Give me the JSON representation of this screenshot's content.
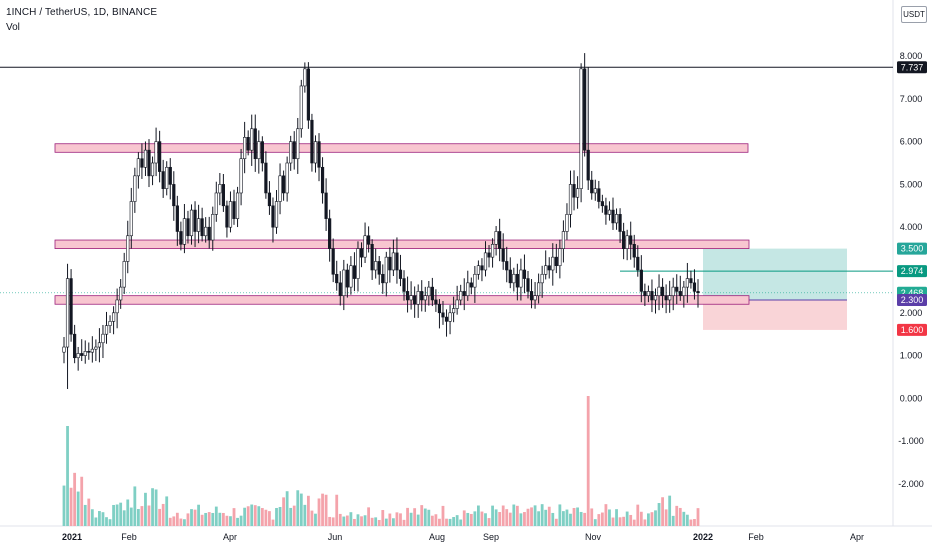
{
  "header": {
    "symbol_title": "1INCH / TetherUS, 1D, BINANCE",
    "volume_label": "Vol",
    "currency_button": "USDT"
  },
  "price_axis": {
    "tick_labels": [
      "8.000",
      "7.000",
      "6.000",
      "5.000",
      "4.000",
      "3.000",
      "2.000",
      "1.000",
      "0.000",
      "-1.000",
      "-2.000"
    ],
    "tick_values": [
      8,
      7,
      6,
      5,
      4,
      3,
      2,
      1,
      0,
      -1,
      -2
    ]
  },
  "time_axis": {
    "labels": [
      "2021",
      "Feb",
      "Apr",
      "Jun",
      "Aug",
      "Sep",
      "Nov",
      "2022",
      "Feb",
      "Apr"
    ],
    "bold": [
      true,
      false,
      false,
      false,
      false,
      false,
      false,
      true,
      false,
      false
    ]
  },
  "price_tags": [
    {
      "label": "7.737",
      "value": 7.737,
      "color": "#131722",
      "text_color": "#ffffff"
    },
    {
      "label": "3.500",
      "value": 3.5,
      "color": "#26a69a",
      "text_color": "#ffffff"
    },
    {
      "label": "2.974",
      "value": 2.974,
      "color": "#089981",
      "text_color": "#ffffff"
    },
    {
      "label": "2.468",
      "value": 2.468,
      "color": "#22ab94",
      "text_color": "#ffffff"
    },
    {
      "label": "2.300",
      "value": 2.3,
      "color": "#5b3ea8",
      "text_color": "#ffffff"
    },
    {
      "label": "1.600",
      "value": 1.6,
      "color": "#f23645",
      "text_color": "#ffffff"
    }
  ],
  "support_resistance_zones": [
    {
      "name": "zone-top",
      "low": 5.75,
      "high": 5.95
    },
    {
      "name": "zone-mid",
      "low": 3.5,
      "high": 3.7
    },
    {
      "name": "zone-low",
      "low": 2.2,
      "high": 2.4
    }
  ],
  "horizontal_lines": [
    {
      "name": "ath-line",
      "value": 7.737,
      "color": "#131722"
    },
    {
      "name": "target-line",
      "value": 2.974,
      "color": "#089981"
    }
  ],
  "long_position": {
    "entry": 2.3,
    "target": 3.5,
    "stop": 1.6,
    "profit_color": "#b2dfdb",
    "loss_color": "#f8c9cd"
  },
  "colors": {
    "candle_body": "#131722",
    "candle_up_fill": "#ffffff",
    "zone_fill": "#f8c6d0",
    "zone_border": "#9c1f7a",
    "vol_up": "#7fcfc4",
    "vol_down": "#f4a3ab"
  },
  "chart_data": {
    "type": "candlestick",
    "title": "1INCH / TetherUS, 1D, BINANCE",
    "ylim": [
      -2.9,
      8.2
    ],
    "close_path": [
      1.2,
      2.8,
      1.5,
      0.95,
      1.05,
      1.0,
      1.1,
      1.08,
      1.15,
      1.2,
      1.3,
      1.5,
      1.7,
      1.8,
      2.0,
      2.3,
      2.6,
      3.2,
      3.8,
      4.6,
      5.2,
      5.6,
      5.4,
      5.8,
      5.2,
      5.5,
      6.0,
      5.3,
      4.9,
      5.4,
      5.0,
      4.5,
      3.9,
      3.6,
      4.2,
      3.8,
      4.4,
      3.9,
      4.2,
      3.8,
      4.0,
      3.7,
      4.3,
      4.8,
      5.0,
      4.5,
      4.0,
      4.6,
      4.2,
      4.8,
      5.6,
      6.1,
      5.8,
      6.3,
      5.6,
      6.0,
      5.5,
      4.8,
      4.5,
      4.0,
      4.6,
      5.2,
      4.8,
      5.5,
      6.0,
      5.6,
      6.3,
      7.3,
      7.7,
      6.5,
      5.5,
      6.0,
      5.4,
      4.8,
      4.2,
      3.5,
      2.9,
      2.7,
      2.4,
      3.0,
      2.6,
      3.1,
      2.8,
      3.5,
      3.3,
      3.8,
      3.6,
      3.0,
      3.2,
      2.9,
      2.7,
      3.3,
      3.0,
      3.4,
      3.0,
      2.8,
      2.5,
      2.3,
      2.4,
      2.2,
      2.5,
      2.3,
      2.4,
      2.6,
      2.3,
      2.2,
      2.0,
      1.9,
      1.8,
      2.0,
      2.1,
      2.3,
      2.5,
      2.4,
      2.7,
      2.6,
      2.9,
      3.1,
      3.0,
      3.4,
      3.3,
      3.6,
      3.9,
      3.5,
      3.2,
      3.0,
      2.7,
      2.9,
      2.6,
      3.0,
      2.8,
      2.5,
      2.3,
      2.4,
      2.7,
      2.9,
      3.1,
      3.0,
      3.3,
      3.1,
      3.5,
      3.9,
      4.3,
      5.0,
      4.7,
      4.9,
      7.7,
      5.8,
      5.1,
      4.8,
      4.9,
      4.6,
      4.5,
      4.3,
      4.4,
      4.1,
      4.3,
      3.9,
      3.5,
      3.8,
      3.6,
      3.3,
      3.0,
      2.5,
      2.4,
      2.5,
      2.3,
      2.4,
      2.6,
      2.4,
      2.3,
      2.4,
      2.6,
      2.5,
      2.4,
      2.6,
      2.8,
      2.7,
      2.5,
      2.47
    ],
    "series": [
      {
        "name": "Vol",
        "type": "volume"
      }
    ]
  }
}
